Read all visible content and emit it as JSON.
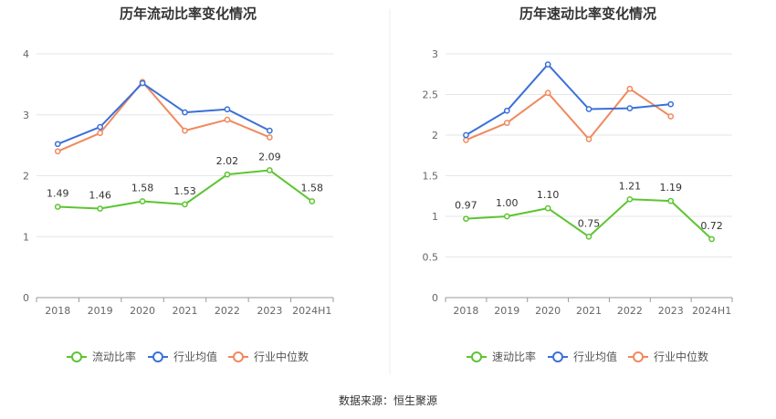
{
  "chart_data": [
    {
      "type": "line",
      "title": "历年流动比率变化情况",
      "categories": [
        "2018",
        "2019",
        "2020",
        "2021",
        "2022",
        "2023",
        "2024H1"
      ],
      "ylim": [
        0,
        4
      ],
      "yticks": [
        "0",
        "1",
        "2",
        "3",
        "4"
      ],
      "grid": true,
      "legend_position": "bottom",
      "series": [
        {
          "name": "流动比率",
          "color": "#5cc531",
          "values": [
            1.49,
            1.46,
            1.58,
            1.53,
            2.02,
            2.09,
            1.58
          ],
          "labels": [
            "1.49",
            "1.46",
            "1.58",
            "1.53",
            "2.02",
            "2.09",
            "1.58"
          ]
        },
        {
          "name": "行业均值",
          "color": "#3a70d8",
          "values": [
            2.52,
            2.8,
            3.52,
            3.04,
            3.09,
            2.74,
            null
          ]
        },
        {
          "name": "行业中位数",
          "color": "#f0895d",
          "values": [
            2.4,
            2.7,
            3.54,
            2.74,
            2.92,
            2.63,
            null
          ]
        }
      ]
    },
    {
      "type": "line",
      "title": "历年速动比率变化情况",
      "categories": [
        "2018",
        "2019",
        "2020",
        "2021",
        "2022",
        "2023",
        "2024H1"
      ],
      "ylim": [
        0,
        3
      ],
      "yticks": [
        "0",
        "0.5",
        "1",
        "1.5",
        "2",
        "2.5",
        "3"
      ],
      "grid": true,
      "legend_position": "bottom",
      "series": [
        {
          "name": "速动比率",
          "color": "#5cc531",
          "values": [
            0.97,
            1.0,
            1.1,
            0.75,
            1.21,
            1.19,
            0.72
          ],
          "labels": [
            "0.97",
            "1.00",
            "1.10",
            "0.75",
            "1.21",
            "1.19",
            "0.72"
          ]
        },
        {
          "name": "行业均值",
          "color": "#3a70d8",
          "values": [
            2.0,
            2.3,
            2.87,
            2.32,
            2.33,
            2.38,
            null
          ]
        },
        {
          "name": "行业中位数",
          "color": "#f0895d",
          "values": [
            1.94,
            2.15,
            2.52,
            1.95,
            2.57,
            2.23,
            null
          ]
        }
      ]
    }
  ],
  "source": "数据来源：恒生聚源"
}
